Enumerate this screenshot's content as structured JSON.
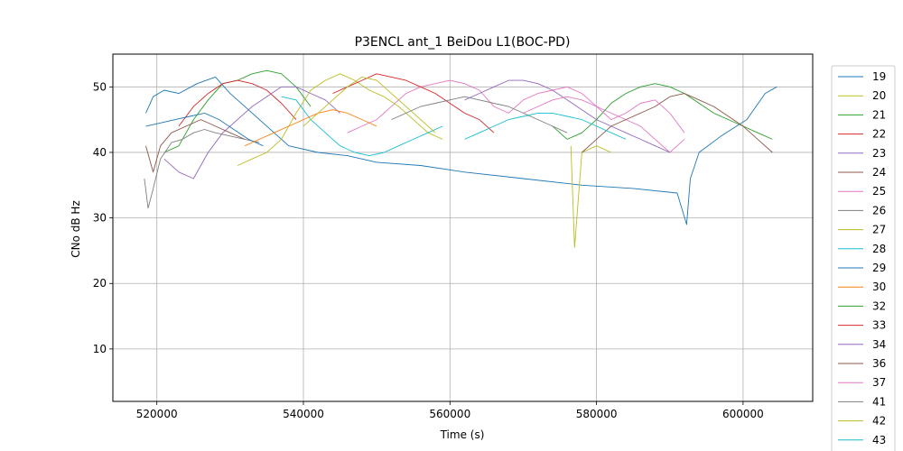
{
  "chart_data": {
    "type": "line",
    "title": "P3ENCL ant_1 BeiDou L1(BOC-PD)",
    "xlabel": "Time (s)",
    "ylabel": "CNo dB Hz",
    "xlim": [
      514000,
      609500
    ],
    "ylim": [
      2,
      55
    ],
    "xticks": [
      520000,
      540000,
      560000,
      580000,
      600000
    ],
    "xtick_labels": [
      "520000",
      "540000",
      "560000",
      "580000",
      "600000"
    ],
    "yticks": [
      10,
      20,
      30,
      40,
      50
    ],
    "ytick_labels": [
      "10",
      "20",
      "30",
      "40",
      "50"
    ],
    "grid": true,
    "legend_position": "outside-right",
    "series": [
      {
        "name": "19",
        "color": "#1f77b4",
        "x": [
          518500,
          519500,
          521000,
          523000,
          525500,
          528000,
          530000,
          532000,
          534000,
          536000,
          538000,
          542000,
          546000,
          550000,
          556000,
          562000,
          570000,
          578000,
          585000,
          591000,
          592300,
          592800,
          594000,
          597000,
          600500,
          603000,
          604600
        ],
        "y": [
          46,
          48.5,
          49.5,
          49,
          50.5,
          51.5,
          49,
          47,
          45,
          43,
          41,
          40,
          39.5,
          38.5,
          38,
          37,
          36,
          35,
          34.5,
          33.8,
          29,
          36,
          40,
          42.5,
          45,
          49,
          50
        ]
      },
      {
        "name": "20",
        "color": "#bcbd22",
        "x": [
          576500,
          577000,
          578000,
          580000,
          582000
        ],
        "y": [
          41,
          25.5,
          40,
          41,
          40
        ]
      },
      {
        "name": "21",
        "color": "#2ca02c",
        "x": [
          521000,
          523000,
          525000,
          527000,
          529000,
          531000,
          533000,
          535000,
          537000,
          539000,
          541000
        ],
        "y": [
          40,
          41,
          45,
          48,
          50.5,
          51,
          52,
          52.5,
          52,
          50,
          47
        ]
      },
      {
        "name": "22",
        "color": "#d62728",
        "x": [
          523000,
          525000,
          527000,
          529000,
          531000,
          533000,
          535000,
          537000,
          539000
        ],
        "y": [
          44,
          47,
          49,
          50.5,
          51,
          50.5,
          49.5,
          47.5,
          45
        ]
      },
      {
        "name": "23",
        "color": "#9467bd",
        "x": [
          521000,
          523000,
          525000,
          527000,
          529000,
          531000,
          533000,
          535000,
          537000,
          539000,
          541000,
          543000,
          545000
        ],
        "y": [
          39,
          37,
          36,
          40,
          43,
          45,
          47,
          48.5,
          50,
          50,
          49,
          48,
          46
        ]
      },
      {
        "name": "24",
        "color": "#8c564b",
        "x": [
          518500,
          519500,
          520500,
          522000,
          524000,
          526000,
          528000,
          530000,
          532000
        ],
        "y": [
          41,
          37,
          41,
          43,
          44,
          45,
          44,
          43,
          42
        ]
      },
      {
        "name": "25",
        "color": "#e377c2",
        "x": [
          546000,
          548000,
          550000,
          552000,
          554000,
          556000,
          558000,
          560000,
          562000,
          564000,
          566000,
          568000,
          570000,
          572000,
          574000,
          576000,
          578000,
          580000,
          582000,
          584000,
          586000,
          588000,
          590000,
          592000
        ],
        "y": [
          43,
          44,
          45,
          47,
          49,
          50,
          50.5,
          51,
          50.5,
          49.5,
          47,
          46,
          48,
          49,
          49.5,
          50,
          49,
          47,
          46,
          45,
          44,
          42,
          40,
          42
        ]
      },
      {
        "name": "26",
        "color": "#7f7f7f",
        "x": [
          518300,
          518800,
          519400,
          520500,
          522000,
          523500,
          525000,
          526500,
          528000,
          530000,
          532000,
          534000
        ],
        "y": [
          36,
          31.5,
          34,
          39,
          41.5,
          42,
          43,
          43.5,
          43,
          42.5,
          42,
          41.5
        ]
      },
      {
        "name": "27",
        "color": "#bcbd22",
        "x": [
          531000,
          533000,
          535000,
          537000,
          539000,
          541000,
          543000,
          545000,
          547000,
          549000,
          551000,
          553000,
          555000,
          557000,
          559000
        ],
        "y": [
          38,
          39,
          40,
          42,
          46,
          49.5,
          51,
          52,
          51,
          49.5,
          48.5,
          47,
          45,
          43,
          42
        ]
      },
      {
        "name": "28",
        "color": "#17becf",
        "x": [
          537000,
          539000,
          541000,
          543000,
          545000,
          547000,
          549000,
          551000,
          553000,
          555000,
          557000,
          559000
        ],
        "y": [
          48.5,
          48,
          45,
          43,
          41,
          40,
          39.5,
          40,
          41,
          42,
          43,
          44
        ]
      },
      {
        "name": "29",
        "color": "#1f77b4",
        "x": [
          518500,
          520500,
          522500,
          524500,
          526500,
          528500,
          530500,
          532500,
          534500
        ],
        "y": [
          44,
          44.5,
          45,
          45.5,
          46,
          45,
          43.5,
          42,
          41
        ]
      },
      {
        "name": "30",
        "color": "#ff7f0e",
        "x": [
          532000,
          534000,
          536000,
          538000,
          540000,
          542000,
          544000,
          546000,
          548000,
          550000
        ],
        "y": [
          41,
          42,
          43,
          44,
          45,
          46,
          46.5,
          46,
          45,
          44
        ]
      },
      {
        "name": "32",
        "color": "#2ca02c",
        "x": [
          574000,
          576000,
          578000,
          580000,
          582000,
          584000,
          586000,
          588000,
          590000,
          592000,
          594000,
          596000,
          598000,
          600000,
          602000,
          604000
        ],
        "y": [
          44,
          42,
          43,
          45,
          47.5,
          49,
          50,
          50.5,
          50,
          49,
          47.5,
          46,
          45,
          44,
          43,
          42
        ]
      },
      {
        "name": "33",
        "color": "#d62728",
        "x": [
          544000,
          546000,
          548000,
          550000,
          552000,
          554000,
          556000,
          558000,
          560000,
          562000,
          564000,
          566000
        ],
        "y": [
          49,
          50,
          51,
          52,
          51.5,
          51,
          50,
          49,
          47.5,
          46,
          45,
          43
        ]
      },
      {
        "name": "34",
        "color": "#9467bd",
        "x": [
          562000,
          564000,
          566000,
          568000,
          570000,
          572000,
          574000,
          576000,
          578000,
          580000,
          582000,
          584000,
          586000,
          588000,
          590000
        ],
        "y": [
          48,
          49,
          50,
          51,
          51,
          50.5,
          49.5,
          48,
          46.5,
          45,
          44,
          43,
          42,
          41,
          40
        ]
      },
      {
        "name": "36",
        "color": "#8c564b",
        "x": [
          578000,
          580000,
          582000,
          584000,
          586000,
          588000,
          590000,
          592000,
          594000,
          596000,
          598000,
          600000,
          602000,
          604000
        ],
        "y": [
          40,
          42,
          44,
          45,
          46,
          47,
          48.5,
          49,
          48,
          47,
          45.5,
          44,
          42,
          40
        ]
      },
      {
        "name": "37",
        "color": "#e377c2",
        "x": [
          570000,
          572000,
          574000,
          576000,
          578000,
          580000,
          582000,
          584000,
          586000,
          588000,
          590000,
          592000
        ],
        "y": [
          46,
          47,
          48,
          48.5,
          48,
          47,
          45,
          46,
          47.5,
          48,
          46,
          43
        ]
      },
      {
        "name": "41",
        "color": "#7f7f7f",
        "x": [
          552000,
          554000,
          556000,
          558000,
          560000,
          562000,
          564000,
          566000,
          568000,
          570000,
          572000,
          574000,
          576000
        ],
        "y": [
          45,
          46,
          47,
          47.5,
          48,
          48.5,
          48,
          47.5,
          47,
          46,
          45,
          44,
          43
        ]
      },
      {
        "name": "42",
        "color": "#bcbd22",
        "x": [
          540000,
          542000,
          544000,
          546000,
          548000,
          550000,
          552000,
          554000,
          556000,
          558000
        ],
        "y": [
          44,
          46,
          48,
          50,
          51.5,
          51,
          49,
          47,
          45,
          43
        ]
      },
      {
        "name": "43",
        "color": "#17becf",
        "x": [
          562000,
          564000,
          566000,
          568000,
          570000,
          572000,
          574000,
          576000,
          578000,
          580000,
          582000,
          584000
        ],
        "y": [
          42,
          43,
          44,
          45,
          45.5,
          46,
          46,
          45.5,
          45,
          44,
          43,
          42
        ]
      }
    ]
  }
}
